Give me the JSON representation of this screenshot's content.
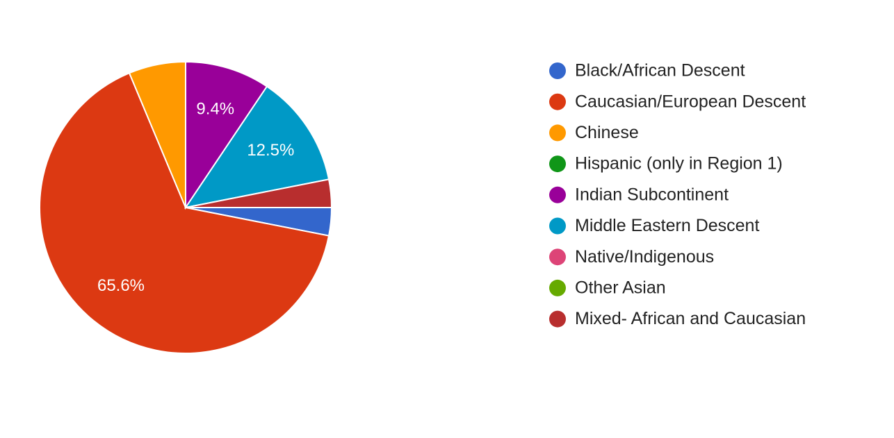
{
  "chart_data": {
    "type": "pie",
    "categories": [
      "Black/African Descent",
      "Caucasian/European Descent",
      "Chinese",
      "Hispanic (only in Region 1)",
      "Indian Subcontinent",
      "Middle Eastern Descent",
      "Native/Indigenous",
      "Other Asian",
      "Mixed- African and Caucasian"
    ],
    "values": [
      3.1,
      65.6,
      6.3,
      0,
      9.4,
      12.5,
      0,
      0,
      3.1
    ],
    "value_labels": [
      null,
      "65.6%",
      null,
      null,
      "9.4%",
      "12.5%",
      null,
      null,
      null
    ],
    "colors": [
      "#3366cc",
      "#dc3912",
      "#ff9900",
      "#109618",
      "#990099",
      "#0099c6",
      "#dd4477",
      "#66aa00",
      "#b82e2e"
    ],
    "legend": "right"
  }
}
